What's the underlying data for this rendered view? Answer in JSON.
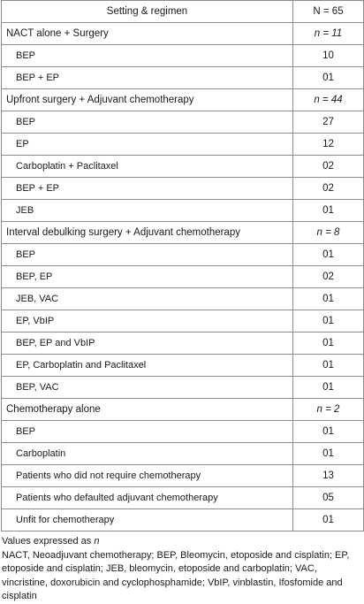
{
  "table": {
    "header": {
      "setting": "Setting & regimen",
      "n": "N = 65"
    },
    "rows": [
      {
        "kind": "sec",
        "label": "NACT alone + Surgery",
        "value": "n = 11"
      },
      {
        "kind": "sub",
        "label": "BEP",
        "value": "10"
      },
      {
        "kind": "sub",
        "label": "BEP + EP",
        "value": "01"
      },
      {
        "kind": "sec",
        "label": "Upfront surgery + Adjuvant chemotherapy",
        "value": "n = 44"
      },
      {
        "kind": "sub",
        "label": "BEP",
        "value": "27"
      },
      {
        "kind": "sub",
        "label": "EP",
        "value": "12"
      },
      {
        "kind": "sub",
        "label": "Carboplatin + Paclitaxel",
        "value": "02"
      },
      {
        "kind": "sub",
        "label": "BEP + EP",
        "value": "02"
      },
      {
        "kind": "sub",
        "label": "JEB",
        "value": "01"
      },
      {
        "kind": "sec",
        "label": "Interval debulking surgery + Adjuvant chemotherapy",
        "value": "n = 8"
      },
      {
        "kind": "sub",
        "label": "BEP",
        "value": "01"
      },
      {
        "kind": "sub",
        "label": "BEP, EP",
        "value": "02"
      },
      {
        "kind": "sub",
        "label": "JEB, VAC",
        "value": "01"
      },
      {
        "kind": "sub",
        "label": "EP, VbIP",
        "value": "01"
      },
      {
        "kind": "sub",
        "label": "BEP, EP and VbIP",
        "value": "01"
      },
      {
        "kind": "sub",
        "label": "EP, Carboplatin and Paclitaxel",
        "value": "01"
      },
      {
        "kind": "sub",
        "label": "BEP, VAC",
        "value": "01"
      },
      {
        "kind": "sec",
        "label": "Chemotherapy alone",
        "value": "n = 2"
      },
      {
        "kind": "sub",
        "label": "BEP",
        "value": "01"
      },
      {
        "kind": "sub",
        "label": "Carboplatin",
        "value": "01"
      },
      {
        "kind": "top",
        "label": "Patients who did not require chemotherapy",
        "value": "13"
      },
      {
        "kind": "top",
        "label": "Patients who defaulted adjuvant chemotherapy",
        "value": "05"
      },
      {
        "kind": "top",
        "label": "Unfit for chemotherapy",
        "value": "01"
      }
    ]
  },
  "notes": {
    "values_prefix": "Values expressed as ",
    "values_symbol": "n",
    "abbreviations": "NACT, Neoadjuvant chemotherapy; BEP, Bleomycin, etoposide and cisplatin; EP, etoposide and cisplatin; JEB, bleomycin, etoposide and carboplatin; VAC, vincristine, doxorubicin and cyclophosphamide; VbIP, vinblastin, Ifosfomide and cisplatin"
  }
}
